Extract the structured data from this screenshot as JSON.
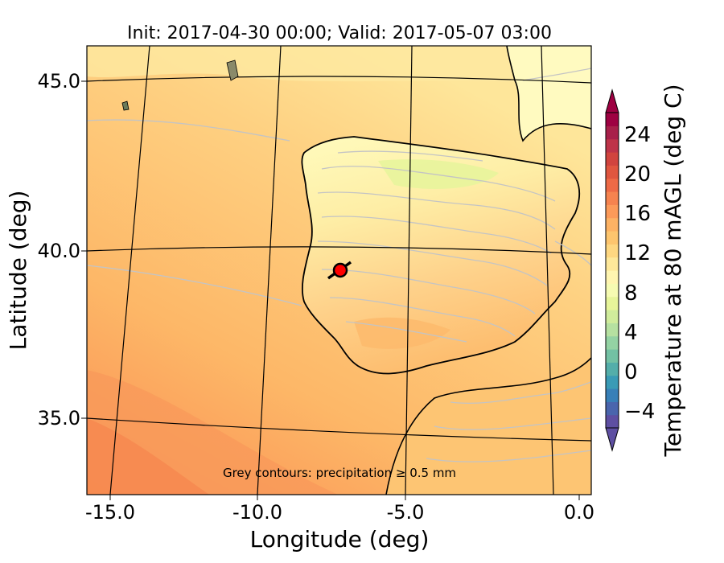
{
  "title": "Init: 2017-04-30 00:00; Valid: 2017-05-07 03:00",
  "xlabel": "Longitude (deg)",
  "ylabel": "Latitude (deg)",
  "annotation": "Grey contours: precipitation ≥ 0.5 mm",
  "x_ticks": [
    "-15.0",
    "-10.0",
    "-5.0",
    "0.0"
  ],
  "y_ticks": [
    "45.0",
    "40.0",
    "35.0"
  ],
  "colorbar": {
    "label": "Temperature at 80 mAGL (deg C)",
    "ticks": [
      "24",
      "20",
      "16",
      "12",
      "8",
      "4",
      "0",
      "−4"
    ],
    "colors": [
      "#5e4fa2",
      "#4a65ad",
      "#3880b8",
      "#3a9bb6",
      "#54aeaa",
      "#73c1a4",
      "#94d3a4",
      "#b6e1a1",
      "#d0ec9c",
      "#e7f59a",
      "#f6fbb2",
      "#fff5b0",
      "#fee89a",
      "#fed781",
      "#fdc56e",
      "#fdb264",
      "#fc9a59",
      "#f6834f",
      "#ee6a46",
      "#e0563f",
      "#d1443e",
      "#be3449",
      "#a8204a",
      "#9e0142"
    ],
    "low_extend": "#5e4fa2",
    "high_extend": "#9e0142"
  },
  "marker": {
    "lon": -7.6,
    "lat": 39.4,
    "color": "#ff0000"
  }
}
